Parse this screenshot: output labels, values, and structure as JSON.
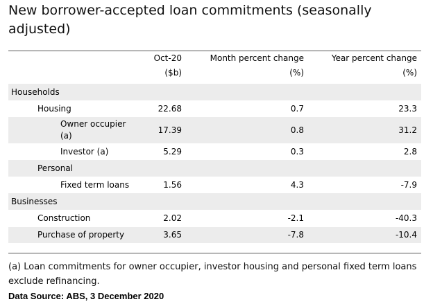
{
  "title": "New borrower-accepted loan commitments (seasonally adjusted)",
  "columns": {
    "c1_line1": "Oct-20",
    "c1_line2": "($b)",
    "c2_line1": "Month percent change",
    "c2_line2": "(%)",
    "c3_line1": "Year percent change",
    "c3_line2": "(%)"
  },
  "rows": [
    {
      "label": "Households",
      "value": "",
      "month": "",
      "year": ""
    },
    {
      "label": "Housing",
      "value": "22.68",
      "month": "0.7",
      "year": "23.3"
    },
    {
      "label_line1": "Owner occupier",
      "label_line2": "(a)",
      "value": "17.39",
      "month": "0.8",
      "year": "31.2"
    },
    {
      "label": "Investor (a)",
      "value": "5.29",
      "month": "0.3",
      "year": "2.8"
    },
    {
      "label": "Personal",
      "value": "",
      "month": "",
      "year": ""
    },
    {
      "label": "Fixed term loans",
      "value": "1.56",
      "month": "4.3",
      "year": "-7.9"
    },
    {
      "label": "Businesses",
      "value": "",
      "month": "",
      "year": ""
    },
    {
      "label": "Construction",
      "value": "2.02",
      "month": "-2.1",
      "year": "-40.3"
    },
    {
      "label": "Purchase of property",
      "value": "3.65",
      "month": "-7.8",
      "year": "-10.4"
    }
  ],
  "footnote": "(a) Loan commitments for owner occupier, investor housing and personal fixed term loans exclude refinancing.",
  "source": "Data Source: ABS, 3 December 2020"
}
